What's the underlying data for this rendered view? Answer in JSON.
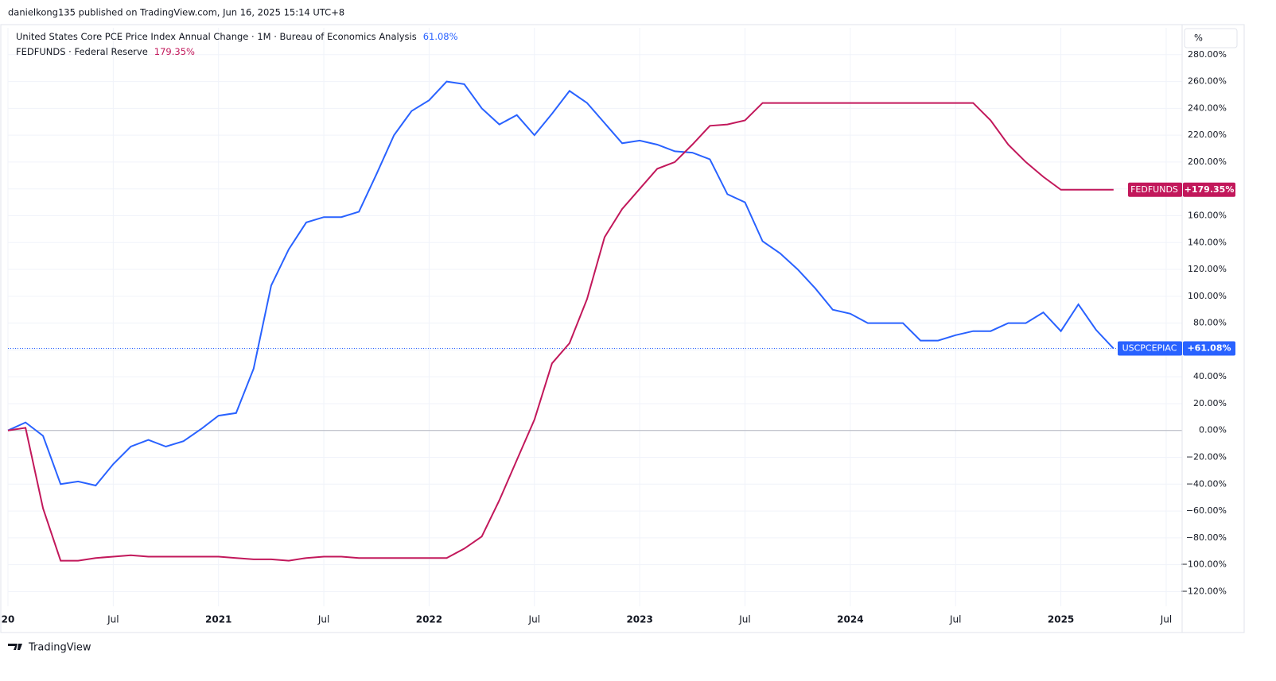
{
  "header": "danielkong135 published on TradingView.com, Jun 16, 2025 15:14 UTC+8",
  "footer": "TradingView",
  "scale_button": "%",
  "chart_data": {
    "type": "line",
    "x": [
      "2020-01",
      "2020-02",
      "2020-03",
      "2020-04",
      "2020-05",
      "2020-06",
      "2020-07",
      "2020-08",
      "2020-09",
      "2020-10",
      "2020-11",
      "2020-12",
      "2021-01",
      "2021-02",
      "2021-03",
      "2021-04",
      "2021-05",
      "2021-06",
      "2021-07",
      "2021-08",
      "2021-09",
      "2021-10",
      "2021-11",
      "2021-12",
      "2022-01",
      "2022-02",
      "2022-03",
      "2022-04",
      "2022-05",
      "2022-06",
      "2022-07",
      "2022-08",
      "2022-09",
      "2022-10",
      "2022-11",
      "2022-12",
      "2023-01",
      "2023-02",
      "2023-03",
      "2023-04",
      "2023-05",
      "2023-06",
      "2023-07",
      "2023-08",
      "2023-09",
      "2023-10",
      "2023-11",
      "2023-12",
      "2024-01",
      "2024-02",
      "2024-03",
      "2024-04",
      "2024-05",
      "2024-06",
      "2024-07",
      "2024-08",
      "2024-09",
      "2024-10",
      "2024-11",
      "2024-12",
      "2025-01",
      "2025-02",
      "2025-03",
      "2025-04"
    ],
    "series": [
      {
        "name": "United States Core PCE Price Index Annual Change · 1M · Bureau of Economics Analysis",
        "short_name": "USCPCEPIAC",
        "color": "#2962ff",
        "legend_value": "61.08%",
        "tag_value": "+61.08%",
        "values": [
          0,
          6,
          -4,
          -40,
          -38,
          -41,
          -25,
          -12,
          -7,
          -12,
          -8,
          1,
          11,
          13,
          46,
          108,
          135,
          155,
          159,
          159,
          163,
          191,
          220,
          238,
          246,
          260,
          258,
          240,
          228,
          235,
          220,
          236,
          253,
          244,
          229,
          214,
          216,
          213,
          208,
          207,
          202,
          176,
          170,
          141,
          132,
          120,
          106,
          90,
          87,
          80,
          80,
          80,
          67,
          67,
          71,
          74,
          74,
          80,
          80,
          88,
          74,
          94,
          75,
          61.08
        ]
      },
      {
        "name": "FEDFUNDS · Federal Reserve",
        "short_name": "FEDFUNDS",
        "color": "#c2185b",
        "legend_value": "179.35%",
        "tag_value": "+179.35%",
        "values": [
          0,
          2,
          -58,
          -97,
          -97,
          -95,
          -94,
          -93,
          -94,
          -94,
          -94,
          -94,
          -94,
          -95,
          -96,
          -96,
          -97,
          -95,
          -94,
          -94,
          -95,
          -95,
          -95,
          -95,
          -95,
          -95,
          -88,
          -79,
          -52,
          -22,
          8,
          50,
          65,
          98,
          144,
          165,
          180,
          195,
          200,
          213,
          227,
          228,
          231,
          244,
          244,
          244,
          244,
          244,
          244,
          244,
          244,
          244,
          244,
          244,
          244,
          244,
          231,
          213,
          200,
          189,
          179.35,
          179.35,
          179.35,
          179.35
        ]
      }
    ],
    "xlim": [
      "2020-01",
      "2025-08"
    ],
    "xticks": [
      {
        "value": "2020-01",
        "label": "20"
      },
      {
        "value": "2020-07",
        "label": "Jul"
      },
      {
        "value": "2021-01",
        "label": "2021"
      },
      {
        "value": "2021-07",
        "label": "Jul"
      },
      {
        "value": "2022-01",
        "label": "2022"
      },
      {
        "value": "2022-07",
        "label": "Jul"
      },
      {
        "value": "2023-01",
        "label": "2023"
      },
      {
        "value": "2023-07",
        "label": "Jul"
      },
      {
        "value": "2024-01",
        "label": "2024"
      },
      {
        "value": "2024-07",
        "label": "Jul"
      },
      {
        "value": "2025-01",
        "label": "2025"
      },
      {
        "value": "2025-07",
        "label": "Jul"
      }
    ],
    "ylim": [
      -131,
      300
    ],
    "yticks": [
      {
        "value": -120,
        "label": "−120.00%"
      },
      {
        "value": -100,
        "label": "−100.00%"
      },
      {
        "value": -80,
        "label": "−80.00%"
      },
      {
        "value": -60,
        "label": "−60.00%"
      },
      {
        "value": -40,
        "label": "−40.00%"
      },
      {
        "value": -20,
        "label": "−20.00%"
      },
      {
        "value": 0,
        "label": "0.00%"
      },
      {
        "value": 20,
        "label": "20.00%"
      },
      {
        "value": 40,
        "label": "40.00%"
      },
      {
        "value": 60,
        "label": "60.00%"
      },
      {
        "value": 80,
        "label": "80.00%"
      },
      {
        "value": 100,
        "label": "100.00%"
      },
      {
        "value": 120,
        "label": "120.00%"
      },
      {
        "value": 140,
        "label": "140.00%"
      },
      {
        "value": 160,
        "label": "160.00%"
      },
      {
        "value": 180,
        "label": "180.00%"
      },
      {
        "value": 200,
        "label": "200.00%"
      },
      {
        "value": 220,
        "label": "220.00%"
      },
      {
        "value": 240,
        "label": "240.00%"
      },
      {
        "value": 260,
        "label": "260.00%"
      },
      {
        "value": 280,
        "label": "280.00%"
      }
    ],
    "grid": true
  }
}
